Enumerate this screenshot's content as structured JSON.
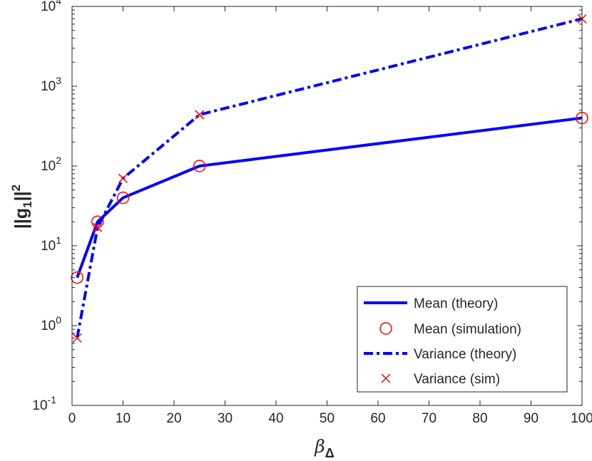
{
  "chart_data": {
    "type": "line",
    "xlabel_main": "β",
    "xlabel_sub": "Δ",
    "ylabel_main": "||g",
    "ylabel_sub": "1",
    "ylabel_tail": "||",
    "ylabel_sup": "2",
    "xlim": [
      0,
      100
    ],
    "ylim": [
      0.1,
      10000
    ],
    "yscale": "log",
    "grid": false,
    "legend_position": "bottom-right",
    "x_ticks": [
      "0",
      "10",
      "20",
      "30",
      "40",
      "50",
      "60",
      "70",
      "80",
      "90",
      "100"
    ],
    "y_ticks": [
      {
        "value": 0.1,
        "base": "10",
        "exp": "-1"
      },
      {
        "value": 1,
        "base": "10",
        "exp": "0"
      },
      {
        "value": 10,
        "base": "10",
        "exp": "1"
      },
      {
        "value": 100,
        "base": "10",
        "exp": "2"
      },
      {
        "value": 1000,
        "base": "10",
        "exp": "3"
      },
      {
        "value": 10000,
        "base": "10",
        "exp": "4"
      }
    ],
    "series": [
      {
        "name": "Mean (theory)",
        "style": "solid",
        "color": "#0000ff",
        "x": [
          1,
          5,
          10,
          25,
          100
        ],
        "y": [
          4,
          20,
          40,
          100,
          400
        ]
      },
      {
        "name": "Mean (simulation)",
        "style": "circle",
        "color": "#ff0000",
        "x": [
          1,
          5,
          10,
          25,
          100
        ],
        "y": [
          4,
          20,
          40,
          100,
          400
        ]
      },
      {
        "name": "Variance (theory)",
        "style": "dashdot",
        "color": "#0000ff",
        "x": [
          1,
          5,
          10,
          25,
          100
        ],
        "y": [
          0.7,
          17,
          70,
          440,
          7000
        ]
      },
      {
        "name": "Variance (sim)",
        "style": "cross",
        "color": "#ff0000",
        "x": [
          1,
          5,
          10,
          25,
          100
        ],
        "y": [
          0.7,
          17,
          70,
          440,
          7000
        ]
      }
    ]
  }
}
